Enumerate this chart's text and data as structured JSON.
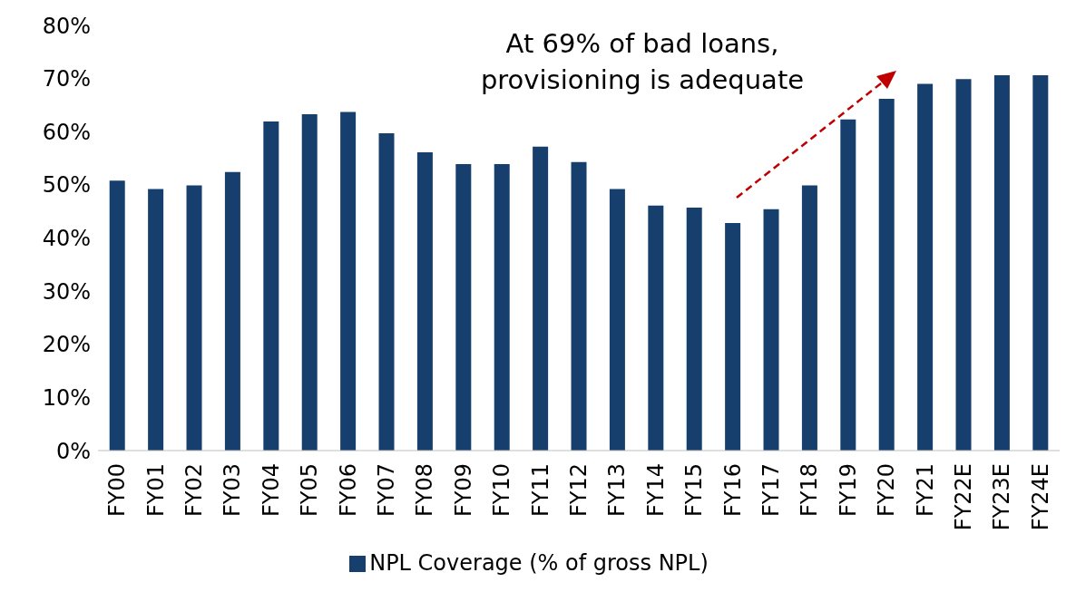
{
  "chart_data": {
    "type": "bar",
    "categories": [
      "FY00",
      "FY01",
      "FY02",
      "FY03",
      "FY04",
      "FY05",
      "FY06",
      "FY07",
      "FY08",
      "FY09",
      "FY10",
      "FY11",
      "FY12",
      "FY13",
      "FY14",
      "FY15",
      "FY16",
      "FY17",
      "FY18",
      "FY19",
      "FY20",
      "FY21",
      "FY22E",
      "FY23E",
      "FY24E"
    ],
    "series": [
      {
        "name": "NPL Coverage (% of gross NPL)",
        "color": "#173f6e",
        "values": [
          50.8,
          49.2,
          49.9,
          52.4,
          61.9,
          63.3,
          63.7,
          59.7,
          56.1,
          53.9,
          53.9,
          57.2,
          54.3,
          49.2,
          46.1,
          45.7,
          42.8,
          45.4,
          49.9,
          62.3,
          66.2,
          69.0,
          69.9,
          70.6,
          70.6
        ]
      }
    ],
    "ylim": [
      0,
      80
    ],
    "yticks": [
      {
        "value": 0,
        "label": "0%"
      },
      {
        "value": 10,
        "label": "10%"
      },
      {
        "value": 20,
        "label": "20%"
      },
      {
        "value": 30,
        "label": "30%"
      },
      {
        "value": 40,
        "label": "40%"
      },
      {
        "value": 50,
        "label": "50%"
      },
      {
        "value": 60,
        "label": "60%"
      },
      {
        "value": 70,
        "label": "70%"
      },
      {
        "value": 80,
        "label": "80%"
      }
    ],
    "grid": false,
    "legend": "bottom",
    "annotations": [
      "At 69% of bad loans,\nprovisioning is adequate"
    ]
  }
}
